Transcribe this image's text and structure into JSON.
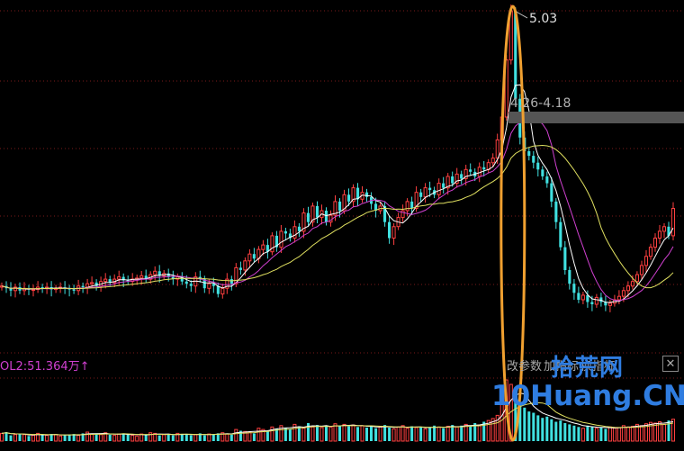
{
  "chart_data": {
    "type": "candlestick",
    "peak_price": "5.03",
    "date_price_label": "4.26-4.18",
    "volume_label": "OL2:51.364万↑",
    "x": [
      1,
      2,
      3,
      4,
      5,
      6,
      7,
      8,
      9,
      10,
      11,
      12,
      13,
      14,
      15,
      16,
      17,
      18,
      19,
      20,
      21,
      22,
      23,
      24,
      25,
      26,
      27,
      28,
      29,
      30,
      31,
      32,
      33,
      34,
      35,
      36,
      37,
      38,
      39,
      40,
      41,
      42,
      43,
      44,
      45,
      46,
      47,
      48,
      49,
      50,
      51,
      52,
      53,
      54,
      55,
      56,
      57,
      58,
      59,
      60,
      61,
      62,
      63,
      64,
      65,
      66,
      67,
      68,
      69,
      70,
      71,
      72,
      73,
      74,
      75,
      76,
      77,
      78,
      79,
      80,
      81,
      82,
      83,
      84,
      85,
      86,
      87,
      88,
      89,
      90,
      91,
      92,
      93,
      94,
      95,
      96,
      97,
      98,
      99,
      100,
      101,
      102,
      103,
      104,
      105,
      106,
      107,
      108,
      109,
      110,
      111,
      112,
      113,
      114,
      115,
      116,
      117,
      118,
      119,
      120,
      121,
      122,
      123,
      124,
      125,
      126,
      127,
      128,
      129,
      130,
      131,
      132,
      133,
      134,
      135,
      136,
      137,
      138,
      139,
      140,
      141,
      142,
      143,
      144,
      145,
      146,
      147,
      148,
      149,
      150
    ],
    "close": [
      2.62,
      2.6,
      2.58,
      2.61,
      2.58,
      2.6,
      2.59,
      2.59,
      2.61,
      2.6,
      2.61,
      2.59,
      2.6,
      2.61,
      2.6,
      2.59,
      2.58,
      2.62,
      2.61,
      2.64,
      2.65,
      2.62,
      2.66,
      2.68,
      2.65,
      2.68,
      2.7,
      2.67,
      2.66,
      2.68,
      2.69,
      2.71,
      2.68,
      2.72,
      2.75,
      2.71,
      2.73,
      2.7,
      2.68,
      2.7,
      2.66,
      2.64,
      2.62,
      2.7,
      2.68,
      2.6,
      2.64,
      2.62,
      2.55,
      2.6,
      2.68,
      2.64,
      2.78,
      2.76,
      2.84,
      2.9,
      2.86,
      2.94,
      2.98,
      2.92,
      3.06,
      2.96,
      3.1,
      3.08,
      3.04,
      3.14,
      3.1,
      3.26,
      3.18,
      3.32,
      3.22,
      3.28,
      3.18,
      3.24,
      3.36,
      3.28,
      3.42,
      3.36,
      3.48,
      3.38,
      3.44,
      3.4,
      3.34,
      3.28,
      3.32,
      3.18,
      3.04,
      3.14,
      3.22,
      3.28,
      3.36,
      3.3,
      3.44,
      3.4,
      3.48,
      3.46,
      3.42,
      3.52,
      3.48,
      3.58,
      3.52,
      3.6,
      3.56,
      3.64,
      3.62,
      3.58,
      3.66,
      3.64,
      3.7,
      3.74,
      3.9,
      4.1,
      4.6,
      5.03,
      4.26,
      3.92,
      3.8,
      3.76,
      3.7,
      3.64,
      3.58,
      3.52,
      3.36,
      3.18,
      2.96,
      2.76,
      2.64,
      2.56,
      2.5,
      2.54,
      2.48,
      2.46,
      2.52,
      2.48,
      2.45,
      2.47,
      2.5,
      2.53,
      2.58,
      2.62,
      2.66,
      2.72,
      2.8,
      2.88,
      2.96,
      3.04,
      3.1,
      3.14,
      3.06,
      3.3
    ],
    "volume_wan": [
      12,
      14,
      9,
      10,
      11,
      10,
      8,
      9,
      12,
      10,
      9,
      11,
      10,
      8,
      9,
      10,
      11,
      9,
      12,
      14,
      11,
      12,
      10,
      13,
      10,
      9,
      11,
      12,
      10,
      9,
      8,
      11,
      10,
      13,
      12,
      9,
      10,
      11,
      9,
      12,
      10,
      11,
      9,
      10,
      12,
      9,
      11,
      10,
      12,
      13,
      11,
      10,
      18,
      16,
      15,
      14,
      12,
      20,
      18,
      16,
      22,
      19,
      24,
      21,
      18,
      26,
      23,
      20,
      28,
      22,
      25,
      21,
      24,
      22,
      27,
      24,
      26,
      23,
      25,
      22,
      24,
      21,
      23,
      20,
      22,
      25,
      21,
      19,
      22,
      24,
      20,
      23,
      21,
      22,
      19,
      21,
      24,
      22,
      20,
      23,
      25,
      22,
      24,
      26,
      23,
      28,
      25,
      30,
      32,
      35,
      40,
      60,
      95,
      88,
      70,
      60,
      52,
      46,
      44,
      40,
      36,
      38,
      34,
      30,
      32,
      28,
      26,
      24,
      22,
      20,
      24,
      22,
      20,
      21,
      19,
      22,
      20,
      21,
      24,
      22,
      23,
      26,
      24,
      27,
      29,
      28,
      30,
      26,
      32,
      34
    ],
    "ma5_color": "#ffffff",
    "ma10_color": "#e0e060",
    "ma20_color": "#d040d0",
    "ma60_color": "#40c040",
    "up_color": "#ff4040",
    "down_color": "#40e0e0",
    "grid": true
  },
  "toolbar": {
    "items": [
      "改参数",
      "加指标",
      "换指标"
    ],
    "close_label": "✕"
  },
  "watermark": {
    "line1": "拾荒网",
    "line2": "10Huang.CN"
  }
}
